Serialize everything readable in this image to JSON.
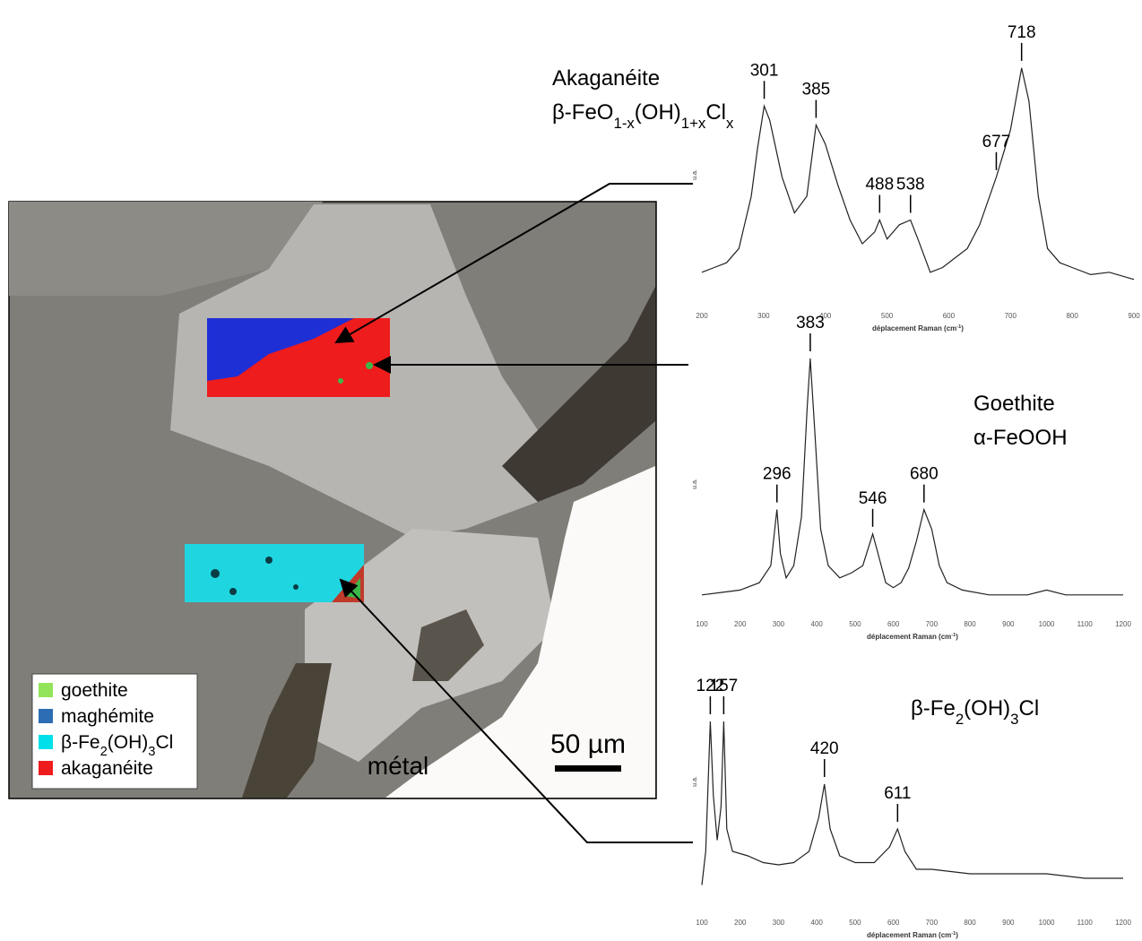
{
  "image": {
    "legend": [
      {
        "label": "goethite",
        "color": "#92e55a"
      },
      {
        "label": "maghémite",
        "color": "#2d6db3"
      },
      {
        "label": [
          "β-Fe",
          {
            "sub": "2"
          },
          "(OH)",
          {
            "sub": "3"
          },
          "Cl"
        ],
        "color": "#00e0ea"
      },
      {
        "label": "akaganéite",
        "color": "#ee1c1c"
      }
    ],
    "scale_bar": "50 µm",
    "region_label": "métal"
  },
  "chart_data": [
    {
      "type": "line",
      "title": [
        "Akaganéite",
        [
          "β-FeO",
          {
            "sub": "1-x"
          },
          "(OH)",
          {
            "sub": "1+x"
          },
          "Cl",
          {
            "sub": "x"
          }
        ]
      ],
      "color": "#222222",
      "x": [
        200,
        220,
        240,
        260,
        280,
        290,
        301,
        310,
        330,
        350,
        370,
        385,
        400,
        420,
        440,
        460,
        480,
        488,
        500,
        520,
        538,
        550,
        570,
        590,
        610,
        630,
        650,
        677,
        700,
        718,
        730,
        745,
        760,
        780,
        800,
        830,
        860,
        900
      ],
      "values": [
        8,
        10,
        12,
        18,
        40,
        60,
        78,
        72,
        48,
        33,
        40,
        70,
        62,
        45,
        30,
        20,
        25,
        30,
        22,
        28,
        30,
        22,
        8,
        10,
        14,
        18,
        28,
        48,
        68,
        94,
        80,
        40,
        18,
        12,
        10,
        7,
        8,
        5
      ],
      "peaks": [
        301,
        385,
        488,
        538,
        677,
        718
      ],
      "xlim": [
        200,
        900
      ],
      "xticks": [
        200,
        300,
        400,
        500,
        600,
        700,
        800,
        900
      ],
      "ylim": [
        0,
        100
      ],
      "xlabel": [
        "déplacement Raman (cm",
        {
          "sup": "-1"
        },
        ")"
      ],
      "ylabel": "u.a."
    },
    {
      "type": "line",
      "title": [
        "Goethite",
        "α-FeOOH"
      ],
      "color": "#222222",
      "x": [
        100,
        150,
        200,
        250,
        280,
        296,
        305,
        320,
        340,
        360,
        375,
        383,
        395,
        410,
        430,
        460,
        490,
        520,
        546,
        560,
        580,
        600,
        620,
        640,
        660,
        680,
        700,
        720,
        740,
        780,
        850,
        950,
        1000,
        1050,
        1100,
        1200
      ],
      "values": [
        3,
        4,
        5,
        8,
        15,
        38,
        20,
        10,
        15,
        35,
        80,
        100,
        70,
        30,
        15,
        10,
        12,
        15,
        28,
        20,
        8,
        6,
        8,
        14,
        25,
        38,
        30,
        15,
        8,
        5,
        3,
        3,
        5,
        3,
        3,
        3
      ],
      "peaks": [
        296,
        383,
        546,
        680
      ],
      "xlim": [
        100,
        1200
      ],
      "xticks": [
        100,
        200,
        300,
        400,
        500,
        600,
        700,
        800,
        900,
        1000,
        1100,
        1200
      ],
      "ylim": [
        0,
        100
      ],
      "xlabel": [
        "déplacement Raman (cm",
        {
          "sup": "-1"
        },
        ")"
      ],
      "ylabel": "u.a."
    },
    {
      "type": "line",
      "title": [
        [
          "β-Fe",
          {
            "sub": "2"
          },
          "(OH)",
          {
            "sub": "3"
          },
          "Cl"
        ]
      ],
      "color": "#222222",
      "x": [
        100,
        110,
        122,
        130,
        140,
        150,
        157,
        165,
        180,
        220,
        260,
        300,
        340,
        380,
        405,
        420,
        435,
        460,
        500,
        550,
        590,
        611,
        630,
        660,
        700,
        800,
        900,
        1000,
        1100,
        1200
      ],
      "values": [
        5,
        20,
        78,
        45,
        25,
        40,
        78,
        30,
        20,
        18,
        15,
        14,
        15,
        20,
        35,
        50,
        30,
        18,
        15,
        15,
        22,
        30,
        20,
        12,
        12,
        10,
        10,
        10,
        8,
        8
      ],
      "peaks": [
        122,
        157,
        420,
        611
      ],
      "xlim": [
        100,
        1200
      ],
      "xticks": [
        100,
        200,
        300,
        400,
        500,
        600,
        700,
        800,
        900,
        1000,
        1100,
        1200
      ],
      "ylim": [
        0,
        100
      ],
      "xlabel": [
        "déplacement Raman (cm",
        {
          "sup": "-1"
        },
        ")"
      ],
      "ylabel": "u.a."
    }
  ]
}
